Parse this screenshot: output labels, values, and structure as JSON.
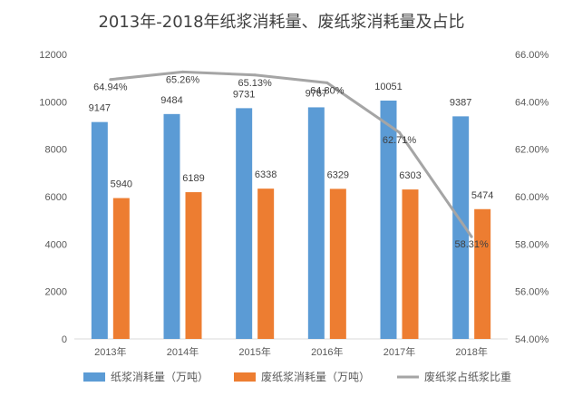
{
  "chart_data": {
    "type": "bar",
    "title": "2013年-2018年纸浆消耗量、废纸浆消耗量及占比",
    "categories": [
      "2013年",
      "2014年",
      "2015年",
      "2016年",
      "2017年",
      "2018年"
    ],
    "series": [
      {
        "name": "纸浆消耗量（万吨）",
        "type": "bar",
        "axis": "left",
        "color": "#5B9BD5",
        "values": [
          9147,
          9484,
          9731,
          9767,
          10051,
          9387
        ]
      },
      {
        "name": "废纸浆消耗量（万吨）",
        "type": "bar",
        "axis": "left",
        "color": "#ED7D31",
        "values": [
          5940,
          6189,
          6338,
          6329,
          6303,
          5474
        ]
      },
      {
        "name": "废纸浆占纸浆比重",
        "type": "line",
        "axis": "right",
        "color": "#A5A5A5",
        "values": [
          64.94,
          65.26,
          65.13,
          64.8,
          62.71,
          58.31
        ],
        "labels": [
          "64.94%",
          "65.26%",
          "65.13%",
          "64.80%",
          "62.71%",
          "58.31%"
        ]
      }
    ],
    "ylim": [
      0,
      12000
    ],
    "y_ticks": [
      "0",
      "2000",
      "4000",
      "6000",
      "8000",
      "10000",
      "12000"
    ],
    "y2lim": [
      54,
      66
    ],
    "y2_ticks": [
      "54.00%",
      "56.00%",
      "58.00%",
      "60.00%",
      "62.00%",
      "64.00%",
      "66.00%"
    ],
    "grid": false,
    "legend": "bottom"
  }
}
